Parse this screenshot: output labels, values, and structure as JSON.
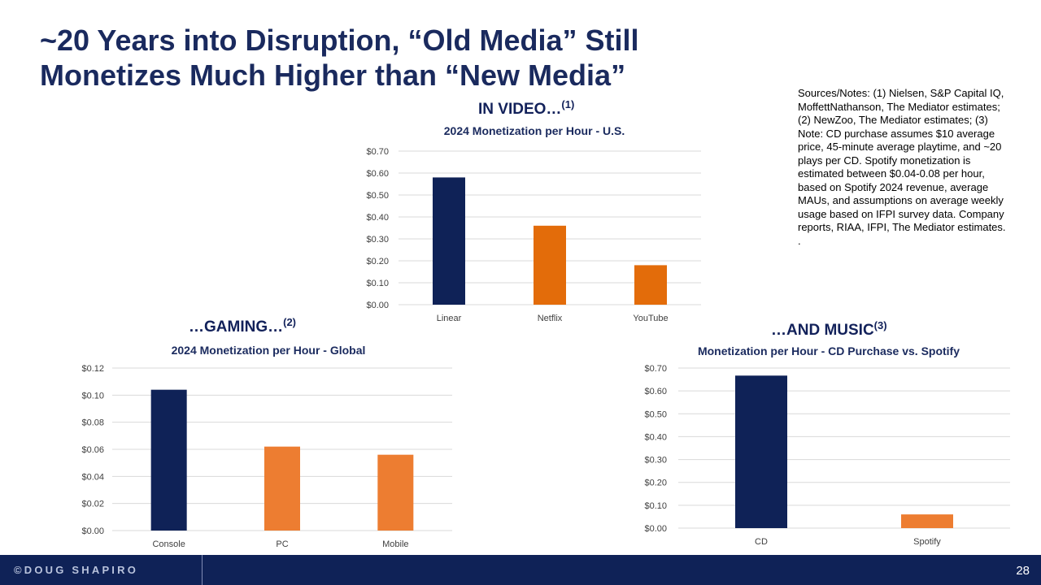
{
  "title": "~20 Years into Disruption, “Old Media” Still Monetizes Much Higher than “New Media”",
  "notes": {
    "text": "Sources/Notes:  (1) Nielsen, S&P Capital IQ, MoffettNathanson, The Mediator estimates; (2) NewZoo, The Mediator estimates; (3) Note: CD purchase assumes $10 average price, 45-minute average playtime, and ~20 plays per CD. Spotify monetization is estimated between $0.04-0.08 per hour, based on Spotify 2024 revenue, average MAUs, and assumptions on average weekly usage based on IFPI survey data. Company reports, RIAA, IFPI, The Mediator estimates.",
    "trailing": "."
  },
  "headings": {
    "video": "IN VIDEO…",
    "video_sup": "(1)",
    "gaming": "…GAMING…",
    "gaming_sup": "(2)",
    "music": "…AND MUSIC",
    "music_sup": "(3)"
  },
  "colors": {
    "old_media": "#0f2257",
    "new_media_video": "#e36c0a",
    "new_media": "#ed7d31",
    "grid": "#d9d9d9",
    "text": "#595959"
  },
  "chart_data": [
    {
      "id": "video",
      "type": "bar",
      "title": "2024 Monetization per Hour - U.S.",
      "categories": [
        "Linear",
        "Netflix",
        "YouTube"
      ],
      "values": [
        0.58,
        0.36,
        0.18
      ],
      "bar_colors": [
        "#0f2257",
        "#e36c0a",
        "#e36c0a"
      ],
      "ylim": [
        0,
        0.7
      ],
      "yticks": [
        "$0.00",
        "$0.10",
        "$0.20",
        "$0.30",
        "$0.40",
        "$0.50",
        "$0.60",
        "$0.70"
      ],
      "xlabel": "",
      "ylabel": ""
    },
    {
      "id": "gaming",
      "type": "bar",
      "title": "2024 Monetization per Hour - Global",
      "categories": [
        "Console",
        "PC",
        "Mobile"
      ],
      "values": [
        0.104,
        0.062,
        0.056
      ],
      "bar_colors": [
        "#0f2257",
        "#ed7d31",
        "#ed7d31"
      ],
      "ylim": [
        0,
        0.12
      ],
      "yticks": [
        "$0.00",
        "$0.02",
        "$0.04",
        "$0.06",
        "$0.08",
        "$0.10",
        "$0.12"
      ],
      "xlabel": "",
      "ylabel": ""
    },
    {
      "id": "music",
      "type": "bar",
      "title": "Monetization per Hour - CD Purchase vs. Spotify",
      "categories": [
        "CD",
        "Spotify"
      ],
      "values": [
        0.667,
        0.06
      ],
      "bar_colors": [
        "#0f2257",
        "#ed7d31"
      ],
      "ylim": [
        0,
        0.7
      ],
      "yticks": [
        "$0.00",
        "$0.10",
        "$0.20",
        "$0.30",
        "$0.40",
        "$0.50",
        "$0.60",
        "$0.70"
      ],
      "xlabel": "",
      "ylabel": ""
    }
  ],
  "footer": {
    "brand": "©DOUG SHAPIRO",
    "page_number": "28"
  }
}
